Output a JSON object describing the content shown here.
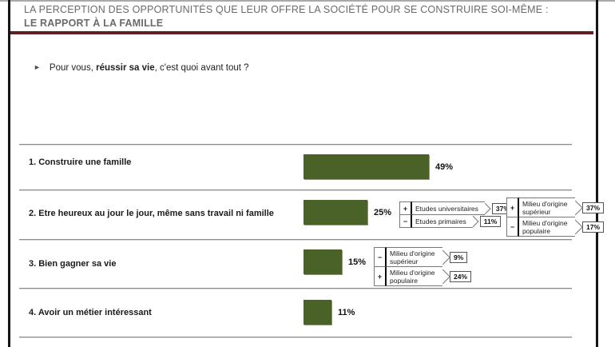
{
  "slide": {
    "title_line1": "LA PERCEPTION DES OPPORTUNITÉS QUE LEUR OFFRE LA SOCIÉTÉ POUR SE CONSTRUIRE SOI-MÊME :",
    "title_line2": "LE RAPPORT À LA FAMILLE"
  },
  "question": {
    "bullet": "►",
    "prefix": "Pour vous, ",
    "emphasis": "réussir sa vie",
    "suffix": ", c'est quoi avant tout ?"
  },
  "chart_data": {
    "type": "bar",
    "orientation": "horizontal",
    "title": "Pour vous, réussir sa vie, c'est quoi avant tout ?",
    "categories": [
      "1.  Construire une famille",
      "2.  Etre heureux au jour le jour, même sans travail ni famille",
      "3.  Bien gagner sa vie",
      "4.  Avoir un métier intéressant"
    ],
    "values": [
      49,
      25,
      15,
      11
    ],
    "value_labels": [
      "49%",
      "25%",
      "15%",
      "11%"
    ],
    "xlim": [
      0,
      100
    ],
    "bar_color": "#4a6128",
    "annotations": [
      {
        "attached_to": "Etre heureux au jour le jour, même sans travail ni famille",
        "groups": [
          {
            "items": [
              {
                "sign": "+",
                "label": "Etudes universitaires",
                "value": "37%"
              },
              {
                "sign": "−",
                "label": "Etudes primaires",
                "value": "11%"
              }
            ]
          },
          {
            "items": [
              {
                "sign": "+",
                "label": "Milieu d'origine supérieur",
                "value": "37%"
              },
              {
                "sign": "−",
                "label": "Milieu d'origine populaire",
                "value": "17%"
              }
            ]
          }
        ]
      },
      {
        "attached_to": "Bien gagner sa vie",
        "groups": [
          {
            "items": [
              {
                "sign": "−",
                "label": "Milieu d'origine supérieur",
                "value": "9%"
              },
              {
                "sign": "+",
                "label": "Milieu d'origine populaire",
                "value": "24%"
              }
            ]
          }
        ]
      }
    ]
  },
  "colors": {
    "bar_green": "#4a6128",
    "title_underline_red": "#621f22",
    "title_text_gray": "#6a6a6a"
  }
}
